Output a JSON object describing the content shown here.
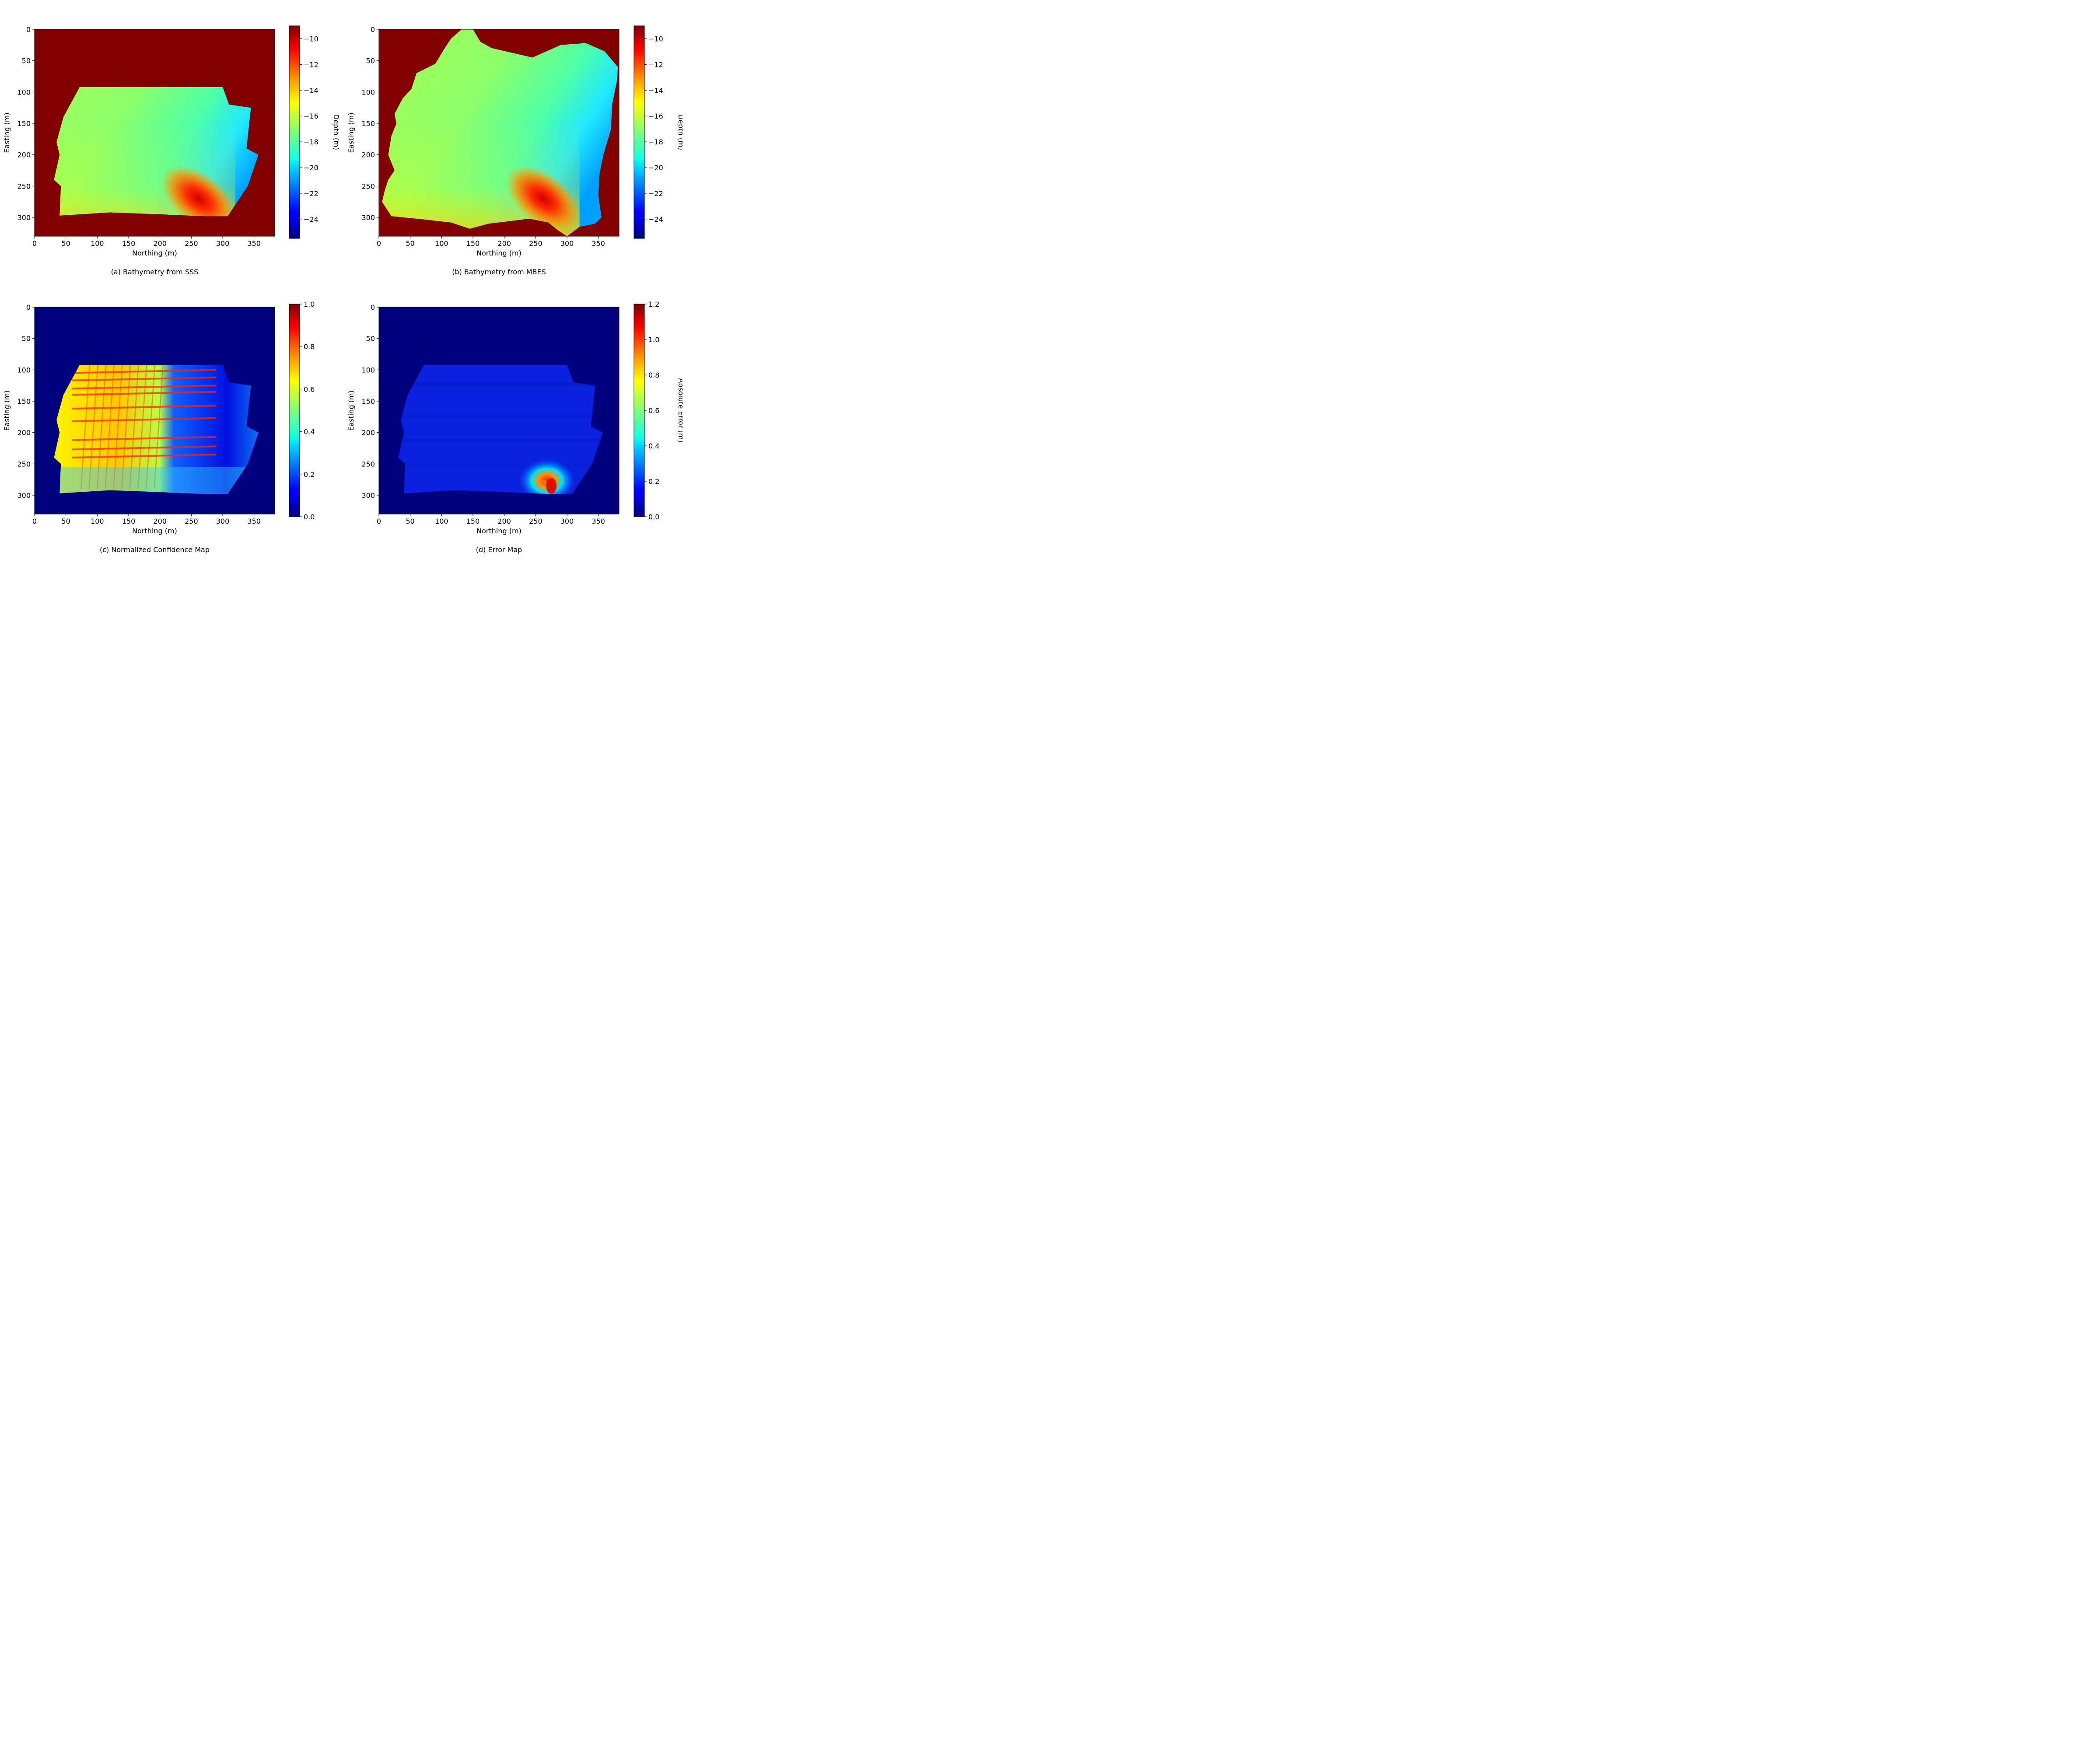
{
  "colors": {
    "map_background_depth": "#800000",
    "map_background_error": "#00007f",
    "colormap": "jet"
  },
  "chart_data": [
    {
      "type": "heatmap",
      "panel": "a",
      "caption": "(a) Bathymetry from SSS",
      "xlabel": "Northing (m)",
      "ylabel": "Easting (m)",
      "xlim": [
        0,
        383
      ],
      "ylim": [
        330,
        0
      ],
      "x_ticks": [
        "0",
        "50",
        "100",
        "150",
        "200",
        "250",
        "300",
        "350"
      ],
      "y_ticks": [
        "0",
        "50",
        "100",
        "150",
        "200",
        "250",
        "300"
      ],
      "colorbar": {
        "label": "Depth (m)",
        "range": [
          -25.5,
          -9
        ],
        "ticks": [
          "−10",
          "−12",
          "−14",
          "−16",
          "−18",
          "−20",
          "−22",
          "−24"
        ],
        "tick_values": [
          -10,
          -12,
          -14,
          -16,
          -18,
          -20,
          -22,
          -24
        ]
      },
      "background_value": -9,
      "coverage_outline": [
        [
          72,
          92
        ],
        [
          300,
          92
        ],
        [
          310,
          120
        ],
        [
          345,
          125
        ],
        [
          338,
          190
        ],
        [
          357,
          200
        ],
        [
          340,
          250
        ],
        [
          308,
          298
        ],
        [
          270,
          298
        ],
        [
          200,
          295
        ],
        [
          120,
          292
        ],
        [
          40,
          297
        ],
        [
          42,
          250
        ],
        [
          31,
          240
        ],
        [
          40,
          200
        ],
        [
          35,
          180
        ],
        [
          46,
          140
        ],
        [
          72,
          92
        ]
      ],
      "depth_field": {
        "shallow_side": "north-west",
        "deep_side": "east",
        "range_over_survey": [
          -20.5,
          -15
        ],
        "shoal_feature": {
          "center": [
            262,
            270
          ],
          "depth": -11
        }
      }
    },
    {
      "type": "heatmap",
      "panel": "b",
      "caption": "(b) Bathymetry from MBES",
      "xlabel": "Northing (m)",
      "ylabel": "Easting (m)",
      "xlim": [
        0,
        383
      ],
      "ylim": [
        330,
        0
      ],
      "x_ticks": [
        "0",
        "50",
        "100",
        "150",
        "200",
        "250",
        "300",
        "350"
      ],
      "y_ticks": [
        "0",
        "50",
        "100",
        "150",
        "200",
        "250",
        "300"
      ],
      "colorbar": {
        "label": "Depth (m)",
        "range": [
          -25.5,
          -9
        ],
        "ticks": [
          "−10",
          "−12",
          "−14",
          "−16",
          "−18",
          "−20",
          "−22",
          "−24"
        ],
        "tick_values": [
          -10,
          -12,
          -14,
          -16,
          -18,
          -20,
          -22,
          -24
        ]
      },
      "background_value": -9,
      "coverage_outline": [
        [
          132,
          0
        ],
        [
          150,
          0
        ],
        [
          162,
          20
        ],
        [
          180,
          30
        ],
        [
          245,
          45
        ],
        [
          290,
          25
        ],
        [
          330,
          22
        ],
        [
          360,
          35
        ],
        [
          381,
          60
        ],
        [
          380,
          80
        ],
        [
          372,
          120
        ],
        [
          370,
          160
        ],
        [
          358,
          200
        ],
        [
          352,
          230
        ],
        [
          350,
          265
        ],
        [
          355,
          300
        ],
        [
          345,
          310
        ],
        [
          320,
          315
        ],
        [
          300,
          330
        ],
        [
          285,
          320
        ],
        [
          270,
          308
        ],
        [
          240,
          302
        ],
        [
          175,
          310
        ],
        [
          145,
          318
        ],
        [
          115,
          308
        ],
        [
          70,
          303
        ],
        [
          20,
          298
        ],
        [
          5,
          275
        ],
        [
          10,
          255
        ],
        [
          15,
          240
        ],
        [
          25,
          225
        ],
        [
          15,
          200
        ],
        [
          20,
          170
        ],
        [
          28,
          150
        ],
        [
          25,
          135
        ],
        [
          38,
          110
        ],
        [
          52,
          95
        ],
        [
          60,
          70
        ],
        [
          90,
          55
        ],
        [
          105,
          30
        ],
        [
          115,
          15
        ],
        [
          132,
          0
        ]
      ],
      "depth_field": {
        "shallow_side": "north-west",
        "deep_side": "east",
        "range_over_survey": [
          -20.5,
          -15
        ],
        "shoal_feature": {
          "center": [
            262,
            270
          ],
          "depth": -11
        }
      }
    },
    {
      "type": "heatmap",
      "panel": "c",
      "caption": "(c) Normalized Confidence Map",
      "xlabel": "Northing (m)",
      "ylabel": "Easting (m)",
      "xlim": [
        0,
        383
      ],
      "ylim": [
        330,
        0
      ],
      "x_ticks": [
        "0",
        "50",
        "100",
        "150",
        "200",
        "250",
        "300",
        "350"
      ],
      "y_ticks": [
        "0",
        "50",
        "100",
        "150",
        "200",
        "250",
        "300"
      ],
      "colorbar": {
        "label": "",
        "range": [
          0,
          1
        ],
        "ticks": [
          "0.0",
          "0.2",
          "0.4",
          "0.6",
          "0.8",
          "1.0"
        ],
        "tick_values": [
          0,
          0.2,
          0.4,
          0.6,
          0.8,
          1.0
        ]
      },
      "background_value": 0,
      "coverage_outline": [
        [
          72,
          92
        ],
        [
          300,
          92
        ],
        [
          310,
          120
        ],
        [
          345,
          125
        ],
        [
          338,
          190
        ],
        [
          357,
          200
        ],
        [
          340,
          250
        ],
        [
          308,
          298
        ],
        [
          270,
          298
        ],
        [
          200,
          295
        ],
        [
          120,
          292
        ],
        [
          40,
          297
        ],
        [
          42,
          250
        ],
        [
          31,
          240
        ],
        [
          40,
          200
        ],
        [
          35,
          180
        ],
        [
          46,
          140
        ],
        [
          72,
          92
        ]
      ],
      "confidence_field": {
        "high_region": "west (Northing 40-205), values 0.6-1.0 with stripes",
        "low_region": "east (Northing 205-350), values 0.05-0.3",
        "stripe_rows_easting": [
          103,
          115,
          128,
          138,
          160,
          180,
          210,
          225,
          238
        ]
      }
    },
    {
      "type": "heatmap",
      "panel": "d",
      "caption": "(d) Error Map",
      "xlabel": "Northing (m)",
      "ylabel": "Easting (m)",
      "xlim": [
        0,
        383
      ],
      "ylim": [
        330,
        0
      ],
      "x_ticks": [
        "0",
        "50",
        "100",
        "150",
        "200",
        "250",
        "300",
        "350"
      ],
      "y_ticks": [
        "0",
        "50",
        "100",
        "150",
        "200",
        "250",
        "300"
      ],
      "colorbar": {
        "label": "Absolute Error (m)",
        "range": [
          0,
          1.2
        ],
        "ticks": [
          "0.0",
          "0.2",
          "0.4",
          "0.6",
          "0.8",
          "1.0",
          "1.2"
        ],
        "tick_values": [
          0,
          0.2,
          0.4,
          0.6,
          0.8,
          1.0,
          1.2
        ]
      },
      "background_value": 0,
      "coverage_outline": [
        [
          72,
          92
        ],
        [
          300,
          92
        ],
        [
          310,
          120
        ],
        [
          345,
          125
        ],
        [
          338,
          190
        ],
        [
          357,
          200
        ],
        [
          340,
          250
        ],
        [
          308,
          298
        ],
        [
          270,
          298
        ],
        [
          200,
          295
        ],
        [
          120,
          292
        ],
        [
          40,
          297
        ],
        [
          42,
          250
        ],
        [
          31,
          240
        ],
        [
          40,
          200
        ],
        [
          35,
          180
        ],
        [
          46,
          140
        ],
        [
          72,
          92
        ]
      ],
      "error_field": {
        "typical_error": [
          0.05,
          0.2
        ],
        "hotspot": {
          "center": [
            275,
            285
          ],
          "max_error": 1.2
        }
      }
    }
  ]
}
